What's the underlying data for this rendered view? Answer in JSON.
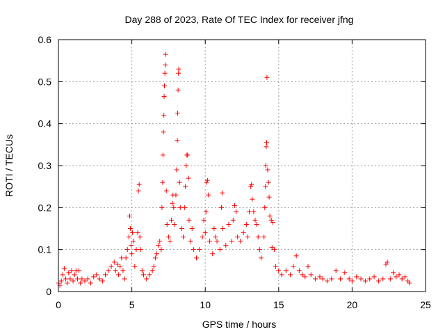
{
  "chart_data": {
    "type": "scatter",
    "title": "Day 288 of 2023, Rate Of TEC Index for receiver jfng",
    "xlabel": "GPS time / hours",
    "ylabel": "ROTI / TECUs",
    "xlim": [
      0,
      25
    ],
    "ylim": [
      0,
      0.6
    ],
    "xticks": [
      0,
      5,
      10,
      15,
      20,
      25
    ],
    "xtick_labels": [
      "0",
      "5",
      "10",
      "15",
      "20",
      "25"
    ],
    "yticks": [
      0,
      0.1,
      0.2,
      0.3,
      0.4,
      0.5,
      0.6
    ],
    "ytick_labels": [
      "0",
      "0.1",
      "0.2",
      "0.3",
      "0.4",
      "0.5",
      "0.6"
    ],
    "grid": true,
    "legend": "none",
    "marker": "+",
    "color": "#ff0000",
    "series": [
      {
        "points": [
          [
            0.0,
            0.02
          ],
          [
            0.1,
            0.015
          ],
          [
            0.2,
            0.025
          ],
          [
            0.3,
            0.04
          ],
          [
            0.4,
            0.055
          ],
          [
            0.5,
            0.03
          ],
          [
            0.6,
            0.02
          ],
          [
            0.7,
            0.045
          ],
          [
            0.8,
            0.03
          ],
          [
            0.9,
            0.05
          ],
          [
            1.0,
            0.025
          ],
          [
            1.1,
            0.04
          ],
          [
            1.2,
            0.05
          ],
          [
            1.3,
            0.03
          ],
          [
            1.4,
            0.05
          ],
          [
            1.5,
            0.02
          ],
          [
            1.6,
            0.03
          ],
          [
            1.8,
            0.025
          ],
          [
            2.0,
            0.03
          ],
          [
            2.2,
            0.02
          ],
          [
            2.4,
            0.035
          ],
          [
            2.6,
            0.04
          ],
          [
            2.8,
            0.03
          ],
          [
            3.0,
            0.025
          ],
          [
            3.2,
            0.04
          ],
          [
            3.4,
            0.05
          ],
          [
            3.6,
            0.06
          ],
          [
            3.8,
            0.07
          ],
          [
            3.9,
            0.05
          ],
          [
            4.0,
            0.065
          ],
          [
            4.1,
            0.04
          ],
          [
            4.2,
            0.06
          ],
          [
            4.3,
            0.08
          ],
          [
            4.4,
            0.05
          ],
          [
            4.5,
            0.03
          ],
          [
            4.6,
            0.08
          ],
          [
            4.7,
            0.1
          ],
          [
            4.8,
            0.13
          ],
          [
            4.85,
            0.18
          ],
          [
            4.9,
            0.15
          ],
          [
            4.95,
            0.11
          ],
          [
            5.0,
            0.09
          ],
          [
            5.05,
            0.14
          ],
          [
            5.1,
            0.12
          ],
          [
            5.2,
            0.06
          ],
          [
            5.3,
            0.1
          ],
          [
            5.4,
            0.14
          ],
          [
            5.45,
            0.24
          ],
          [
            5.5,
            0.255
          ],
          [
            5.55,
            0.13
          ],
          [
            5.6,
            0.1
          ],
          [
            5.7,
            0.05
          ],
          [
            5.8,
            0.04
          ],
          [
            6.0,
            0.03
          ],
          [
            6.2,
            0.04
          ],
          [
            6.4,
            0.05
          ],
          [
            6.5,
            0.06
          ],
          [
            6.6,
            0.08
          ],
          [
            6.7,
            0.09
          ],
          [
            6.8,
            0.11
          ],
          [
            6.9,
            0.12
          ],
          [
            7.0,
            0.1
          ],
          [
            7.05,
            0.2
          ],
          [
            7.1,
            0.26
          ],
          [
            7.12,
            0.325
          ],
          [
            7.15,
            0.38
          ],
          [
            7.18,
            0.42
          ],
          [
            7.2,
            0.465
          ],
          [
            7.22,
            0.49
          ],
          [
            7.25,
            0.52
          ],
          [
            7.28,
            0.54
          ],
          [
            7.3,
            0.565
          ],
          [
            7.35,
            0.24
          ],
          [
            7.4,
            0.16
          ],
          [
            7.5,
            0.13
          ],
          [
            7.6,
            0.12
          ],
          [
            7.7,
            0.17
          ],
          [
            7.75,
            0.21
          ],
          [
            7.8,
            0.23
          ],
          [
            7.85,
            0.2
          ],
          [
            7.9,
            0.16
          ],
          [
            8.0,
            0.23
          ],
          [
            8.05,
            0.29
          ],
          [
            8.1,
            0.36
          ],
          [
            8.12,
            0.425
          ],
          [
            8.15,
            0.48
          ],
          [
            8.18,
            0.52
          ],
          [
            8.2,
            0.53
          ],
          [
            8.25,
            0.26
          ],
          [
            8.3,
            0.2
          ],
          [
            8.4,
            0.15
          ],
          [
            8.5,
            0.13
          ],
          [
            8.6,
            0.2
          ],
          [
            8.65,
            0.25
          ],
          [
            8.7,
            0.3
          ],
          [
            8.75,
            0.325
          ],
          [
            8.8,
            0.325
          ],
          [
            8.85,
            0.27
          ],
          [
            8.9,
            0.17
          ],
          [
            9.0,
            0.12
          ],
          [
            9.1,
            0.15
          ],
          [
            9.2,
            0.1
          ],
          [
            9.4,
            0.08
          ],
          [
            9.6,
            0.1
          ],
          [
            9.8,
            0.13
          ],
          [
            9.9,
            0.17
          ],
          [
            10.0,
            0.14
          ],
          [
            10.05,
            0.19
          ],
          [
            10.1,
            0.26
          ],
          [
            10.15,
            0.265
          ],
          [
            10.2,
            0.23
          ],
          [
            10.3,
            0.12
          ],
          [
            10.5,
            0.09
          ],
          [
            10.6,
            0.15
          ],
          [
            10.7,
            0.13
          ],
          [
            10.8,
            0.12
          ],
          [
            11.0,
            0.1
          ],
          [
            11.1,
            0.2
          ],
          [
            11.15,
            0.235
          ],
          [
            11.2,
            0.15
          ],
          [
            11.4,
            0.11
          ],
          [
            11.6,
            0.16
          ],
          [
            11.8,
            0.12
          ],
          [
            11.9,
            0.17
          ],
          [
            12.0,
            0.205
          ],
          [
            12.1,
            0.19
          ],
          [
            12.2,
            0.13
          ],
          [
            12.4,
            0.12
          ],
          [
            12.6,
            0.14
          ],
          [
            12.8,
            0.16
          ],
          [
            12.9,
            0.13
          ],
          [
            13.0,
            0.19
          ],
          [
            13.1,
            0.25
          ],
          [
            13.15,
            0.255
          ],
          [
            13.2,
            0.22
          ],
          [
            13.3,
            0.19
          ],
          [
            13.4,
            0.17
          ],
          [
            13.5,
            0.16
          ],
          [
            13.6,
            0.13
          ],
          [
            13.7,
            0.1
          ],
          [
            13.8,
            0.08
          ],
          [
            14.0,
            0.13
          ],
          [
            14.05,
            0.2
          ],
          [
            14.1,
            0.25
          ],
          [
            14.12,
            0.3
          ],
          [
            14.15,
            0.345
          ],
          [
            14.18,
            0.355
          ],
          [
            14.2,
            0.51
          ],
          [
            14.25,
            0.29
          ],
          [
            14.3,
            0.26
          ],
          [
            14.35,
            0.225
          ],
          [
            14.4,
            0.18
          ],
          [
            14.5,
            0.17
          ],
          [
            14.55,
            0.105
          ],
          [
            14.6,
            0.165
          ],
          [
            14.7,
            0.1
          ],
          [
            14.8,
            0.06
          ],
          [
            15.0,
            0.05
          ],
          [
            15.2,
            0.04
          ],
          [
            15.5,
            0.05
          ],
          [
            15.8,
            0.04
          ],
          [
            16.0,
            0.06
          ],
          [
            16.2,
            0.085
          ],
          [
            16.4,
            0.05
          ],
          [
            16.6,
            0.04
          ],
          [
            16.8,
            0.035
          ],
          [
            17.0,
            0.06
          ],
          [
            17.2,
            0.04
          ],
          [
            17.5,
            0.03
          ],
          [
            17.8,
            0.035
          ],
          [
            18.0,
            0.03
          ],
          [
            18.3,
            0.025
          ],
          [
            18.6,
            0.03
          ],
          [
            18.9,
            0.05
          ],
          [
            19.2,
            0.03
          ],
          [
            19.5,
            0.045
          ],
          [
            19.8,
            0.03
          ],
          [
            20.0,
            0.025
          ],
          [
            20.3,
            0.035
          ],
          [
            20.6,
            0.03
          ],
          [
            20.9,
            0.025
          ],
          [
            21.2,
            0.03
          ],
          [
            21.5,
            0.035
          ],
          [
            21.8,
            0.025
          ],
          [
            22.1,
            0.03
          ],
          [
            22.3,
            0.065
          ],
          [
            22.4,
            0.07
          ],
          [
            22.6,
            0.03
          ],
          [
            22.8,
            0.045
          ],
          [
            23.0,
            0.035
          ],
          [
            23.2,
            0.04
          ],
          [
            23.4,
            0.03
          ],
          [
            23.6,
            0.035
          ],
          [
            23.8,
            0.025
          ],
          [
            23.9,
            0.02
          ]
        ]
      }
    ]
  }
}
